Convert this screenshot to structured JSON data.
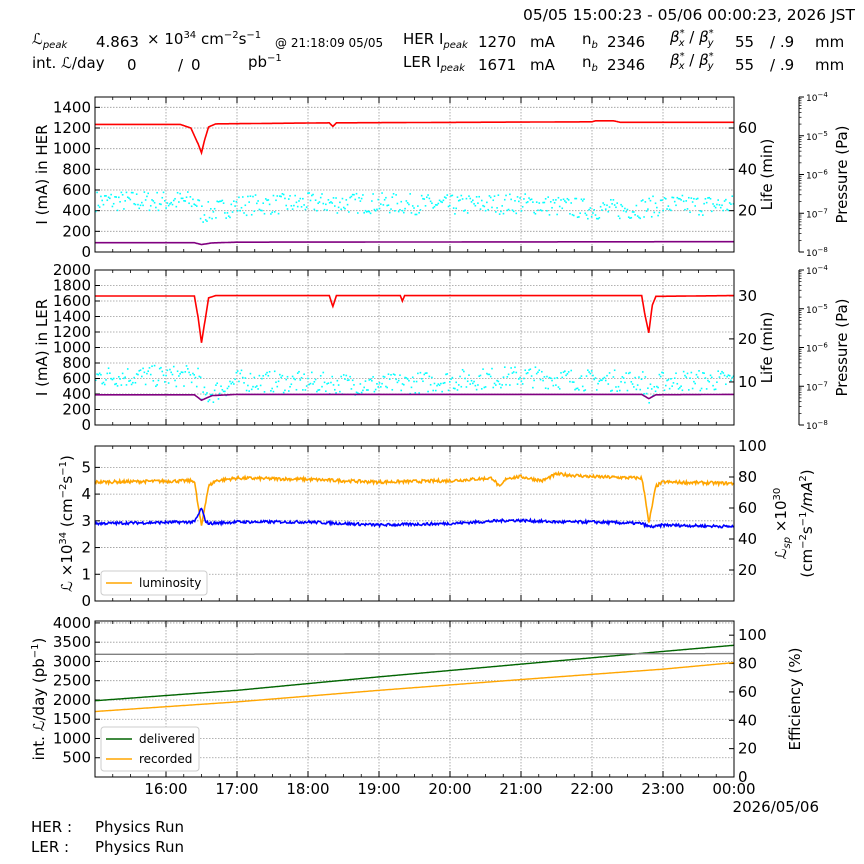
{
  "header": {
    "time_range": "05/05 15:00:23 - 05/06 00:00:23, 2026 JST",
    "lpeak_label": "peak",
    "lpeak_value": "4.863",
    "lpeak_unit_x": "× 10",
    "lpeak_exp": "34",
    "lpeak_unit": "cm",
    "lpeak_at": "@ 21:18:09 05/05",
    "intl_label": "int.",
    "intl_day": "/day",
    "intl_value1": "0",
    "intl_sep": "/",
    "intl_value2": "0",
    "intl_unit": "pb",
    "her_label": "HER I",
    "ler_label": "LER I",
    "peak_sub": "peak",
    "her_ipeak": "1270",
    "ler_ipeak": "1671",
    "ma": "mA",
    "nb_label": "n",
    "nb_sub": "b",
    "her_nb": "2346",
    "ler_nb": "2346",
    "beta_x": "55",
    "beta_y": "/ .9",
    "mm": "mm"
  },
  "footer": {
    "her_label": "HER :",
    "her_status": "Physics Run",
    "ler_label": "LER :",
    "ler_status": "Physics Run"
  },
  "colors": {
    "current": "#ff0000",
    "lifetime": "#00ffff",
    "pressure": "#800080",
    "luminosity": "#ffa500",
    "specific": "#0000ff",
    "delivered": "#006400",
    "recorded": "#ffa500",
    "efficiency": "#808080"
  },
  "chart_data": [
    {
      "type": "line",
      "id": "her",
      "ylabel": "I (mA) in HER",
      "ylabel_right": "Life (min)",
      "ylabel_right2": "Pressure (Pa)",
      "ylim": [
        0,
        1500
      ],
      "yticks": [
        0,
        200,
        400,
        600,
        800,
        1000,
        1200,
        1400
      ],
      "ylim_right": [
        0,
        75
      ],
      "yticks_right": [
        20,
        40,
        60
      ],
      "pressure_range": [
        "1e-8",
        "1e-4"
      ],
      "pressure_ticks": [
        "10-8",
        "10-7",
        "10-6",
        "10-5",
        "10-4"
      ],
      "series": [
        {
          "name": "current",
          "x": [
            15.0,
            16.2,
            16.35,
            16.45,
            16.5,
            16.55,
            16.6,
            16.7,
            18.3,
            18.35,
            18.4,
            22.0,
            22.05,
            22.3,
            22.4,
            24.0
          ],
          "y": [
            1235,
            1235,
            1200,
            1050,
            960,
            1100,
            1210,
            1240,
            1250,
            1215,
            1250,
            1260,
            1270,
            1270,
            1255,
            1255
          ]
        },
        {
          "name": "lifetime",
          "x": [
            15.0,
            16.4,
            16.5,
            17.0,
            18.0,
            19.0,
            20.0,
            21.0,
            22.0,
            22.5,
            23.0,
            24.0
          ],
          "y": [
            24,
            24,
            18,
            22,
            23,
            23,
            22,
            23,
            20,
            20,
            22,
            22
          ]
        },
        {
          "name": "pressure",
          "x": [
            15.0,
            16.4,
            16.5,
            16.65,
            17.0,
            24.0
          ],
          "y": [
            90,
            90,
            72,
            88,
            95,
            100
          ]
        }
      ]
    },
    {
      "type": "line",
      "id": "ler",
      "ylabel": "I (mA) in LER",
      "ylabel_right": "Life (min)",
      "ylabel_right2": "Pressure (Pa)",
      "ylim": [
        0,
        2000
      ],
      "yticks": [
        0,
        200,
        400,
        600,
        800,
        1000,
        1200,
        1400,
        1600,
        1800,
        2000
      ],
      "ylim_right": [
        0,
        36
      ],
      "yticks_right": [
        10,
        20,
        30
      ],
      "pressure_range": [
        "1e-8",
        "1e-4"
      ],
      "pressure_ticks": [
        "10-8",
        "10-7",
        "10-6",
        "10-5",
        "10-4"
      ],
      "series": [
        {
          "name": "current",
          "x": [
            15.0,
            16.4,
            16.45,
            16.5,
            16.55,
            16.6,
            16.7,
            18.3,
            18.35,
            18.4,
            19.3,
            19.33,
            19.36,
            22.7,
            22.75,
            22.8,
            22.85,
            22.9,
            24.0
          ],
          "y": [
            1665,
            1665,
            1400,
            1060,
            1350,
            1640,
            1670,
            1670,
            1530,
            1670,
            1670,
            1600,
            1670,
            1670,
            1400,
            1190,
            1550,
            1660,
            1670
          ]
        },
        {
          "name": "lifetime",
          "x": [
            15.0,
            16.45,
            16.5,
            17.0,
            19.0,
            20.0,
            21.0,
            22.0,
            22.7,
            22.8,
            23.0,
            24.0
          ],
          "y": [
            11,
            11,
            6,
            10,
            9,
            10,
            11,
            10,
            10,
            7,
            10,
            10
          ]
        },
        {
          "name": "pressure",
          "x": [
            15.0,
            16.4,
            16.5,
            16.65,
            17.0,
            22.7,
            22.8,
            22.9,
            24.0
          ],
          "y": [
            390,
            390,
            320,
            380,
            395,
            395,
            340,
            390,
            395
          ]
        }
      ]
    },
    {
      "type": "line",
      "id": "lumi",
      "ylabel": "×10",
      "ylabel_exp": "34",
      "ylabel_unit": "(cm",
      "ylabel_right": "×10",
      "ylabel_right_exp": "30",
      "ylabel_right_sub": "sp",
      "ylabel_right2_unit": "(cm",
      "ylim": [
        0,
        5.8
      ],
      "yticks": [
        0,
        1,
        2,
        3,
        4,
        5
      ],
      "ylim_right": [
        0,
        100
      ],
      "yticks_right": [
        20,
        40,
        60,
        80,
        100
      ],
      "legend": [
        "luminosity"
      ],
      "legend_position": "lower-left",
      "series": [
        {
          "name": "luminosity",
          "x": [
            15.0,
            16.4,
            16.45,
            16.5,
            16.55,
            16.6,
            16.7,
            17.0,
            18.0,
            19.0,
            20.0,
            20.6,
            20.7,
            20.8,
            21.0,
            21.3,
            21.5,
            22.0,
            22.7,
            22.75,
            22.8,
            22.9,
            23.0,
            24.0
          ],
          "y": [
            4.45,
            4.5,
            3.6,
            2.8,
            3.6,
            4.3,
            4.5,
            4.6,
            4.55,
            4.45,
            4.5,
            4.6,
            4.25,
            4.6,
            4.65,
            4.5,
            4.75,
            4.65,
            4.6,
            3.9,
            2.9,
            4.3,
            4.45,
            4.4
          ]
        },
        {
          "name": "specific",
          "x": [
            15.0,
            16.4,
            16.45,
            16.5,
            16.55,
            16.6,
            17.0,
            18.0,
            19.0,
            20.0,
            20.8,
            21.0,
            21.5,
            22.0,
            22.7,
            22.8,
            22.9,
            23.0,
            24.0
          ],
          "y": [
            50,
            51,
            55,
            60,
            52,
            50,
            51,
            51,
            49,
            50,
            52,
            52,
            51,
            51,
            50,
            48,
            48,
            49,
            48
          ]
        }
      ]
    },
    {
      "type": "line",
      "id": "intlumi",
      "ylabel": "int.",
      "ylabel_day": "/day (pb",
      "ylabel_right": "Efficiency (%)",
      "ylim": [
        0,
        4050
      ],
      "yticks": [
        500,
        1000,
        1500,
        2000,
        2500,
        3000,
        3500,
        4000
      ],
      "ylim_right": [
        0,
        110
      ],
      "yticks_right": [
        20,
        40,
        60,
        80,
        100
      ],
      "xlim": [
        15.0,
        24.0
      ],
      "xticks": [
        "16:00",
        "17:00",
        "18:00",
        "19:00",
        "20:00",
        "21:00",
        "22:00",
        "23:00",
        "00:00"
      ],
      "xdate": "2026/05/06",
      "legend": [
        "delivered",
        "recorded"
      ],
      "legend_position": "lower-left",
      "series": [
        {
          "name": "delivered",
          "x": [
            15.0,
            17.0,
            19.0,
            21.0,
            23.0,
            24.0
          ],
          "y": [
            1980,
            2250,
            2600,
            2930,
            3260,
            3420
          ]
        },
        {
          "name": "recorded",
          "x": [
            15.0,
            17.0,
            19.0,
            21.0,
            23.0,
            24.0
          ],
          "y": [
            1700,
            1950,
            2250,
            2530,
            2800,
            2970
          ]
        },
        {
          "name": "efficiency",
          "x": [
            15.0,
            24.0
          ],
          "y": [
            86.5,
            87
          ]
        }
      ]
    }
  ]
}
